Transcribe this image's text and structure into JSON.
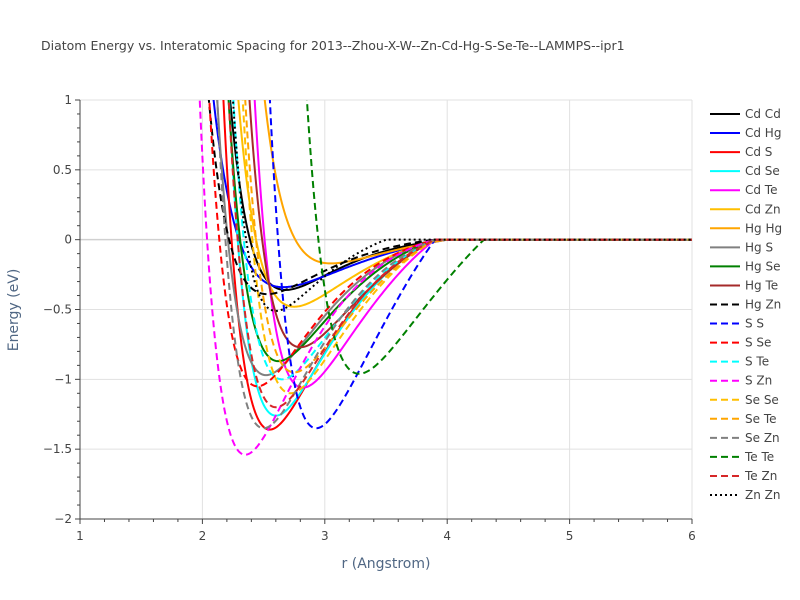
{
  "chart_data": {
    "type": "line",
    "title": "Diatom Energy vs. Interatomic Spacing for 2013--Zhou-X-W--Zn-Cd-Hg-S-Se-Te--LAMMPS--ipr1",
    "xlabel": "r (Angstrom)",
    "ylabel": "Energy (eV)",
    "xlim": [
      1,
      6
    ],
    "ylim": [
      -2,
      1
    ],
    "xticks": [
      1,
      2,
      3,
      4,
      5,
      6
    ],
    "yticks": [
      -2,
      -1.5,
      -1,
      -0.5,
      0,
      0.5,
      1
    ],
    "ytick_labels": [
      "−2",
      "−1.5",
      "−1",
      "−0.5",
      "0",
      "0.5",
      "1"
    ],
    "grid": true,
    "legend_position": "right",
    "series": [
      {
        "name": "Cd Cd",
        "color": "#000000",
        "dash": "solid",
        "r0": 2.68,
        "D": 0.36,
        "w": 0.42,
        "rc": 4.0
      },
      {
        "name": "Cd Hg",
        "color": "#0000ff",
        "dash": "solid",
        "r0": 2.66,
        "D": 0.34,
        "w": 0.52,
        "rc": 4.0
      },
      {
        "name": "Cd S",
        "color": "#ff0000",
        "dash": "solid",
        "r0": 2.55,
        "D": 1.36,
        "w": 0.45,
        "rc": 3.9
      },
      {
        "name": "Cd Se",
        "color": "#00ffff",
        "dash": "solid",
        "r0": 2.6,
        "D": 1.26,
        "w": 0.45,
        "rc": 3.9
      },
      {
        "name": "Cd Te",
        "color": "#ff00ff",
        "dash": "solid",
        "r0": 2.82,
        "D": 1.06,
        "w": 0.45,
        "rc": 3.9
      },
      {
        "name": "Cd Zn",
        "color": "#ffbf00",
        "dash": "solid",
        "r0": 2.75,
        "D": 0.48,
        "w": 0.45,
        "rc": 3.9
      },
      {
        "name": "Hg Hg",
        "color": "#ffa500",
        "dash": "solid",
        "r0": 3.05,
        "D": 0.17,
        "w": 0.42,
        "rc": 4.0
      },
      {
        "name": "Hg S",
        "color": "#808080",
        "dash": "solid",
        "r0": 2.52,
        "D": 0.97,
        "w": 0.45,
        "rc": 3.9
      },
      {
        "name": "Hg Se",
        "color": "#008000",
        "dash": "solid",
        "r0": 2.62,
        "D": 0.87,
        "w": 0.45,
        "rc": 3.9
      },
      {
        "name": "Hg Te",
        "color": "#a52a2a",
        "dash": "solid",
        "r0": 2.8,
        "D": 0.77,
        "w": 0.45,
        "rc": 3.9
      },
      {
        "name": "Hg Zn",
        "color": "#000000",
        "dash": "dash",
        "r0": 2.53,
        "D": 0.39,
        "w": 0.45,
        "rc": 3.9
      },
      {
        "name": "S S",
        "color": "#0000ff",
        "dash": "dash",
        "r0": 2.93,
        "D": 1.35,
        "w": 0.45,
        "rc": 3.9
      },
      {
        "name": "S Se",
        "color": "#ff0000",
        "dash": "dash",
        "r0": 2.45,
        "D": 1.05,
        "w": 0.45,
        "rc": 3.9
      },
      {
        "name": "S Te",
        "color": "#00ffff",
        "dash": "dash",
        "r0": 2.65,
        "D": 1.0,
        "w": 0.45,
        "rc": 3.9
      },
      {
        "name": "S Zn",
        "color": "#ff00ff",
        "dash": "dash",
        "r0": 2.35,
        "D": 1.54,
        "w": 0.45,
        "rc": 3.9
      },
      {
        "name": "Se Se",
        "color": "#ffbf00",
        "dash": "dash",
        "r0": 2.72,
        "D": 1.1,
        "w": 0.45,
        "rc": 3.9
      },
      {
        "name": "Se Te",
        "color": "#ffa500",
        "dash": "dash",
        "r0": 2.75,
        "D": 0.95,
        "w": 0.45,
        "rc": 3.9
      },
      {
        "name": "Se Zn",
        "color": "#808080",
        "dash": "dash",
        "r0": 2.5,
        "D": 1.35,
        "w": 0.45,
        "rc": 3.9
      },
      {
        "name": "Te Te",
        "color": "#008000",
        "dash": "dash",
        "r0": 3.28,
        "D": 0.96,
        "w": 0.48,
        "rc": 4.3
      },
      {
        "name": "Te Zn",
        "color": "#d62728",
        "dash": "dash",
        "r0": 2.6,
        "D": 1.2,
        "w": 0.45,
        "rc": 3.9
      },
      {
        "name": "Zn Zn",
        "color": "#000000",
        "dash": "dot",
        "r0": 2.6,
        "D": 0.51,
        "w": 0.35,
        "rc": 3.5
      }
    ]
  }
}
